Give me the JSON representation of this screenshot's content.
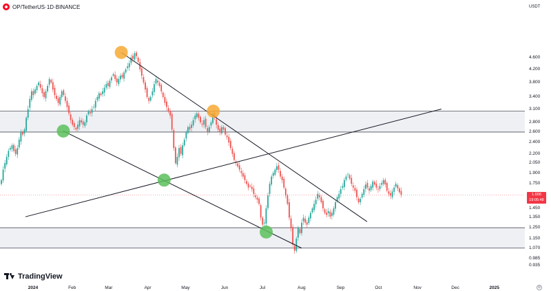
{
  "header": {
    "symbol": "OP",
    "sep1": " / ",
    "quote": "TetherUS",
    "sep2": " · ",
    "interval": "1D",
    "sep3": " · ",
    "exchange": "BINANCE"
  },
  "price_axis": {
    "unit": "USDT",
    "ticks": [
      "4.600",
      "4.200",
      "3.800",
      "3.400",
      "3.100",
      "2.800",
      "2.600",
      "2.400",
      "2.200",
      "2.050",
      "1.900",
      "1.750",
      "1.450",
      "1.350",
      "1.250",
      "1.150",
      "1.070",
      "0.985",
      "0.935"
    ],
    "current_price": "1.606",
    "countdown": "19:05:48",
    "current_color": "#f23645"
  },
  "time_axis": {
    "labels": [
      "2024",
      "Feb",
      "Mar",
      "Apr",
      "May",
      "Jun",
      "Jul",
      "Aug",
      "Sep",
      "Oct",
      "Nov",
      "Dec",
      "2025"
    ],
    "bold": [
      "2024",
      "2025"
    ]
  },
  "branding": {
    "name": "TradingView",
    "icon": "tradingview-logo-icon"
  },
  "settings_icon": "settings-icon",
  "chart_data": {
    "type": "candlestick",
    "title": "OP / TetherUS · 1D · BINANCE",
    "ylabel": "USDT",
    "scale": "log",
    "ylim": [
      0.935,
      5.0
    ],
    "up_color": "#26a69a",
    "down_color": "#ef5350",
    "closes": [
      1.8,
      1.95,
      2.05,
      2.15,
      2.25,
      2.3,
      2.35,
      2.25,
      2.2,
      2.3,
      2.45,
      2.6,
      2.55,
      2.65,
      2.9,
      3.1,
      3.35,
      3.55,
      3.45,
      3.6,
      3.7,
      3.8,
      3.65,
      3.5,
      3.4,
      3.55,
      3.7,
      3.9,
      3.8,
      3.6,
      3.45,
      3.35,
      3.25,
      3.4,
      3.55,
      3.45,
      3.3,
      3.15,
      3.0,
      2.85,
      2.75,
      2.7,
      2.65,
      2.75,
      2.85,
      2.8,
      2.75,
      2.8,
      2.95,
      3.05,
      3.0,
      3.1,
      3.15,
      3.3,
      3.4,
      3.5,
      3.45,
      3.55,
      3.65,
      3.75,
      3.7,
      3.85,
      3.95,
      4.05,
      3.9,
      3.8,
      3.9,
      4.0,
      3.95,
      4.1,
      4.2,
      4.3,
      4.4,
      4.6,
      4.55,
      4.75,
      4.65,
      4.45,
      4.2,
      4.0,
      3.8,
      3.6,
      3.4,
      3.3,
      3.4,
      3.55,
      3.75,
      3.9,
      3.8,
      3.7,
      3.55,
      3.4,
      3.25,
      3.15,
      3.05,
      2.95,
      2.65,
      2.3,
      2.05,
      2.15,
      2.3,
      2.2,
      2.35,
      2.45,
      2.6,
      2.7,
      2.65,
      2.75,
      2.85,
      2.95,
      3.0,
      2.9,
      2.8,
      2.75,
      2.85,
      2.7,
      2.6,
      2.7,
      2.8,
      3.0,
      2.9,
      2.75,
      2.65,
      2.6,
      2.7,
      2.65,
      2.55,
      2.5,
      2.4,
      2.3,
      2.2,
      2.1,
      2.05,
      2.0,
      1.95,
      1.9,
      1.85,
      1.8,
      1.75,
      1.7,
      1.72,
      1.68,
      1.62,
      1.58,
      1.55,
      1.5,
      1.35,
      1.28,
      1.3,
      1.45,
      1.6,
      1.75,
      1.85,
      1.9,
      1.95,
      2.0,
      1.95,
      1.85,
      1.8,
      1.7,
      1.6,
      1.5,
      1.35,
      1.25,
      1.1,
      1.05,
      1.15,
      1.25,
      1.2,
      1.3,
      1.35,
      1.3,
      1.28,
      1.35,
      1.4,
      1.45,
      1.5,
      1.55,
      1.62,
      1.58,
      1.52,
      1.45,
      1.4,
      1.38,
      1.42,
      1.36,
      1.4,
      1.45,
      1.52,
      1.58,
      1.62,
      1.68,
      1.72,
      1.8,
      1.85,
      1.88,
      1.82,
      1.75,
      1.7,
      1.66,
      1.58,
      1.52,
      1.56,
      1.62,
      1.68,
      1.74,
      1.7,
      1.66,
      1.72,
      1.78,
      1.74,
      1.7,
      1.68,
      1.72,
      1.76,
      1.8,
      1.74,
      1.66,
      1.62,
      1.6,
      1.65,
      1.7,
      1.75,
      1.69,
      1.64,
      1.606
    ],
    "horizontal_zones": [
      {
        "from": 2.6,
        "to": 3.05
      },
      {
        "from": 1.07,
        "to": 1.25
      }
    ],
    "trendlines": [
      {
        "from": [
          "2024-03-11",
          4.78
        ],
        "to": [
          "2024-09-22",
          1.31
        ]
      },
      {
        "from": [
          "2024-01-25",
          2.62
        ],
        "to": [
          "2024-08-01",
          1.07
        ]
      },
      {
        "from": [
          "2023-12-26",
          1.36
        ],
        "to": [
          "2024-11-20",
          3.1
        ]
      }
    ],
    "markers": [
      {
        "date": "2024-03-11",
        "price": 4.78,
        "kind": "high"
      },
      {
        "date": "2024-05-23",
        "price": 3.05,
        "kind": "high"
      },
      {
        "date": "2024-01-25",
        "price": 2.62,
        "kind": "low"
      },
      {
        "date": "2024-04-14",
        "price": 1.8,
        "kind": "low"
      },
      {
        "date": "2024-07-04",
        "price": 1.21,
        "kind": "low"
      }
    ],
    "marker_colors": {
      "high": "#f7a934",
      "low": "#5cbf5c"
    }
  }
}
